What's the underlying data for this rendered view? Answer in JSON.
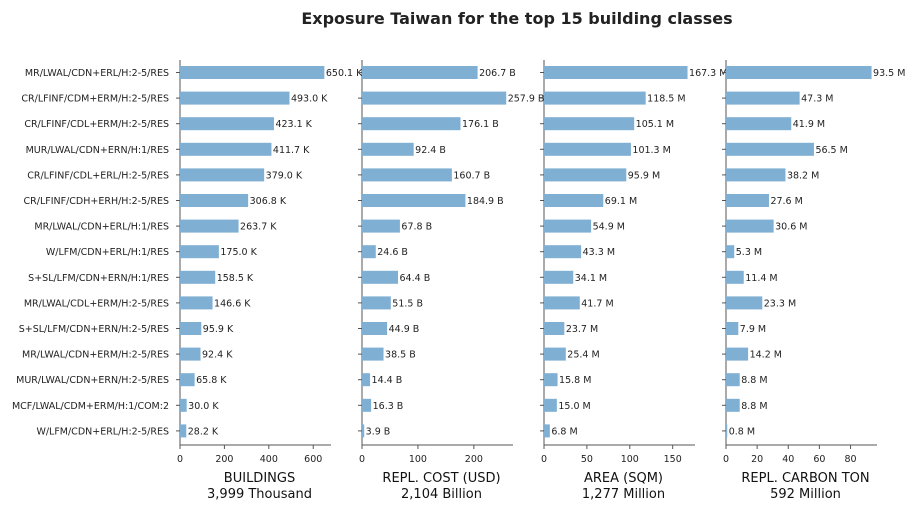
{
  "chart_data": {
    "type": "bar",
    "orientation": "horizontal",
    "title": "Exposure Taiwan for the top 15 building classes",
    "bar_color": "#7fafd3",
    "categories": [
      "MR/LWAL/CDN+ERL/H:2-5/RES",
      "CR/LFINF/CDM+ERM/H:2-5/RES",
      "CR/LFINF/CDL+ERM/H:2-5/RES",
      "MUR/LWAL/CDN+ERN/H:1/RES",
      "CR/LFINF/CDL+ERL/H:2-5/RES",
      "CR/LFINF/CDH+ERH/H:2-5/RES",
      "MR/LWAL/CDN+ERL/H:1/RES",
      "W/LFM/CDN+ERL/H:1/RES",
      "S+SL/LFM/CDN+ERN/H:1/RES",
      "MR/LWAL/CDL+ERM/H:2-5/RES",
      "S+SL/LFM/CDN+ERN/H:2-5/RES",
      "MR/LWAL/CDN+ERM/H:2-5/RES",
      "MUR/LWAL/CDN+ERN/H:2-5/RES",
      "MCF/LWAL/CDM+ERM/H:1/COM:2",
      "W/LFM/CDN+ERL/H:2-5/RES"
    ],
    "panels": [
      {
        "xlabel": "BUILDINGS",
        "xlabel2": "3,999 Thousand",
        "xlim": [
          0,
          680
        ],
        "ticks": [
          0,
          200,
          400,
          600
        ],
        "values": [
          650.1,
          493.0,
          423.1,
          411.7,
          379.0,
          306.8,
          263.7,
          175.0,
          158.5,
          146.6,
          95.9,
          92.4,
          65.8,
          30.0,
          28.2
        ],
        "labels": [
          "650.1 K",
          "493.0 K",
          "423.1 K",
          "411.7 K",
          "379.0 K",
          "306.8 K",
          "263.7 K",
          "175.0 K",
          "158.5 K",
          "146.6 K",
          "95.9 K",
          "92.4 K",
          "65.8 K",
          "30.0 K",
          "28.2 K"
        ]
      },
      {
        "xlabel": "REPL. COST (USD)",
        "xlabel2": "2,104 Billion",
        "xlim": [
          0,
          270
        ],
        "ticks": [
          0,
          100,
          200
        ],
        "values": [
          206.7,
          257.9,
          176.1,
          92.4,
          160.7,
          184.9,
          67.8,
          24.6,
          64.4,
          51.5,
          44.9,
          38.5,
          14.4,
          16.3,
          3.9
        ],
        "labels": [
          "206.7 B",
          "257.9 B",
          "176.1 B",
          "92.4 B",
          "160.7 B",
          "184.9 B",
          "67.8 B",
          "24.6 B",
          "64.4 B",
          "51.5 B",
          "44.9 B",
          "38.5 B",
          "14.4 B",
          "16.3 B",
          "3.9 B"
        ]
      },
      {
        "xlabel": "AREA (SQM)",
        "xlabel2": "1,277 Million",
        "xlim": [
          0,
          176
        ],
        "ticks": [
          0,
          50,
          100,
          150
        ],
        "values": [
          167.3,
          118.5,
          105.1,
          101.3,
          95.9,
          69.1,
          54.9,
          43.3,
          34.1,
          41.7,
          23.7,
          25.4,
          15.8,
          15.0,
          6.8
        ],
        "labels": [
          "167.3 M",
          "118.5 M",
          "105.1 M",
          "101.3 M",
          "95.9 M",
          "69.1 M",
          "54.9 M",
          "43.3 M",
          "34.1 M",
          "41.7 M",
          "23.7 M",
          "25.4 M",
          "15.8 M",
          "15.0 M",
          "6.8 M"
        ]
      },
      {
        "xlabel": "REPL. CARBON TON",
        "xlabel2": "592 Million",
        "xlim": [
          0,
          97
        ],
        "ticks": [
          0,
          20,
          40,
          60,
          80
        ],
        "values": [
          93.5,
          47.3,
          41.9,
          56.5,
          38.2,
          27.6,
          30.6,
          5.3,
          11.4,
          23.3,
          7.9,
          14.2,
          8.8,
          8.8,
          0.8
        ],
        "labels": [
          "93.5 M",
          "47.3 M",
          "41.9 M",
          "56.5 M",
          "38.2 M",
          "27.6 M",
          "30.6 M",
          "5.3 M",
          "11.4 M",
          "23.3 M",
          "7.9 M",
          "14.2 M",
          "8.8 M",
          "8.8 M",
          "0.8 M"
        ]
      }
    ]
  }
}
